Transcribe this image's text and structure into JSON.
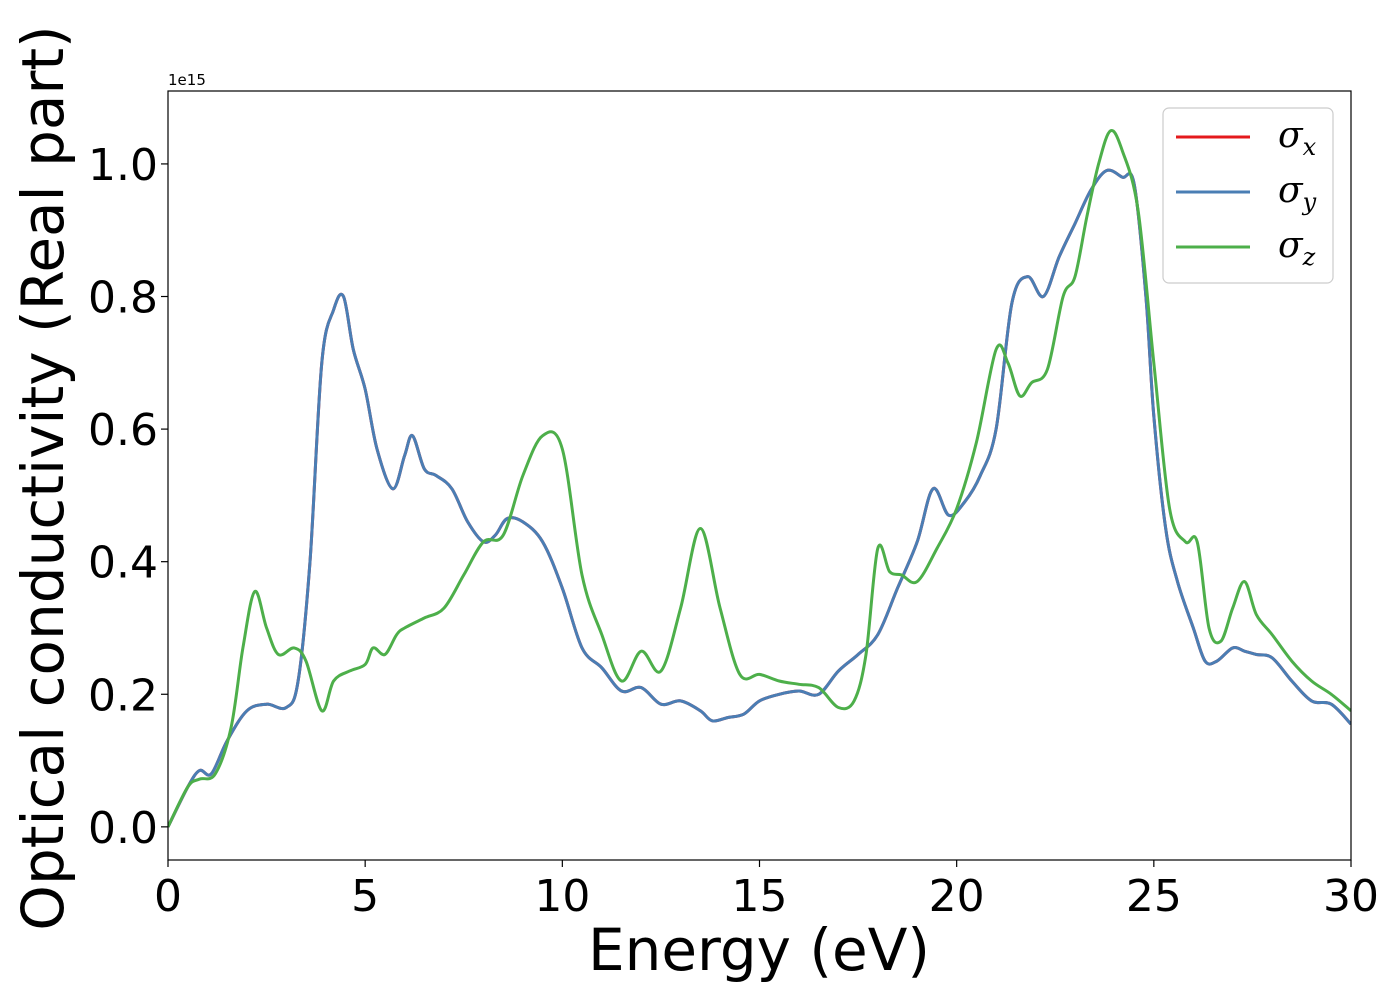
{
  "chart_data": {
    "type": "line",
    "title": "",
    "xlabel": "Energy (eV)",
    "ylabel": "Optical conductivity (Real part)",
    "y_offset_label": "1e15",
    "xlim": [
      0,
      30
    ],
    "ylim": [
      -0.05,
      1.11
    ],
    "x_ticks": [
      0,
      5,
      10,
      15,
      20,
      25,
      30
    ],
    "x_tick_labels": [
      "0",
      "5",
      "10",
      "15",
      "20",
      "25",
      "30"
    ],
    "y_ticks": [
      0.0,
      0.2,
      0.4,
      0.6,
      0.8,
      1.0
    ],
    "y_tick_labels": [
      "0.0",
      "0.2",
      "0.4",
      "0.6",
      "0.8",
      "1.0"
    ],
    "grid": false,
    "legend_position": "top-right",
    "series": [
      {
        "name": "σx",
        "symbol": "σ",
        "subscript": "x",
        "color": "#e41a1c",
        "x": [
          0,
          0.5,
          0.8,
          1.1,
          1.5,
          2.0,
          2.5,
          3.0,
          3.3,
          3.6,
          3.9,
          4.2,
          4.45,
          4.7,
          5.0,
          5.3,
          5.7,
          6.0,
          6.2,
          6.5,
          6.8,
          7.2,
          7.6,
          8.0,
          8.3,
          8.6,
          9.0,
          9.5,
          10.0,
          10.5,
          11.0,
          11.5,
          12.0,
          12.5,
          13.0,
          13.5,
          13.8,
          14.2,
          14.6,
          15.0,
          15.5,
          16.0,
          16.5,
          17.0,
          17.5,
          18.0,
          18.5,
          19.0,
          19.4,
          19.8,
          20.2,
          20.6,
          21.0,
          21.4,
          21.8,
          22.2,
          22.6,
          23.0,
          23.4,
          23.8,
          24.2,
          24.5,
          24.8,
          25.0,
          25.3,
          25.6,
          26.0,
          26.3,
          26.6,
          27.0,
          27.3,
          27.6,
          28.0,
          28.5,
          29.0,
          29.5,
          30.0
        ],
        "y": [
          0.0,
          0.06,
          0.085,
          0.08,
          0.13,
          0.175,
          0.185,
          0.18,
          0.22,
          0.4,
          0.7,
          0.78,
          0.8,
          0.72,
          0.66,
          0.57,
          0.51,
          0.56,
          0.59,
          0.54,
          0.53,
          0.51,
          0.46,
          0.43,
          0.44,
          0.465,
          0.46,
          0.43,
          0.36,
          0.27,
          0.24,
          0.205,
          0.21,
          0.185,
          0.19,
          0.175,
          0.16,
          0.165,
          0.17,
          0.19,
          0.2,
          0.205,
          0.2,
          0.235,
          0.26,
          0.29,
          0.36,
          0.43,
          0.51,
          0.47,
          0.49,
          0.53,
          0.6,
          0.79,
          0.83,
          0.8,
          0.86,
          0.91,
          0.96,
          0.99,
          0.98,
          0.97,
          0.8,
          0.62,
          0.45,
          0.37,
          0.3,
          0.25,
          0.25,
          0.27,
          0.265,
          0.26,
          0.255,
          0.22,
          0.19,
          0.185,
          0.155
        ]
      },
      {
        "name": "σy",
        "symbol": "σ",
        "subscript": "y",
        "color": "#4a7eb4",
        "x": [
          0,
          0.5,
          0.8,
          1.1,
          1.5,
          2.0,
          2.5,
          3.0,
          3.3,
          3.6,
          3.9,
          4.2,
          4.45,
          4.7,
          5.0,
          5.3,
          5.7,
          6.0,
          6.2,
          6.5,
          6.8,
          7.2,
          7.6,
          8.0,
          8.3,
          8.6,
          9.0,
          9.5,
          10.0,
          10.5,
          11.0,
          11.5,
          12.0,
          12.5,
          13.0,
          13.5,
          13.8,
          14.2,
          14.6,
          15.0,
          15.5,
          16.0,
          16.5,
          17.0,
          17.5,
          18.0,
          18.5,
          19.0,
          19.4,
          19.8,
          20.2,
          20.6,
          21.0,
          21.4,
          21.8,
          22.2,
          22.6,
          23.0,
          23.4,
          23.8,
          24.2,
          24.5,
          24.8,
          25.0,
          25.3,
          25.6,
          26.0,
          26.3,
          26.6,
          27.0,
          27.3,
          27.6,
          28.0,
          28.5,
          29.0,
          29.5,
          30.0
        ],
        "y": [
          0.0,
          0.06,
          0.085,
          0.08,
          0.13,
          0.175,
          0.185,
          0.18,
          0.22,
          0.4,
          0.7,
          0.78,
          0.8,
          0.72,
          0.66,
          0.57,
          0.51,
          0.56,
          0.59,
          0.54,
          0.53,
          0.51,
          0.46,
          0.43,
          0.44,
          0.465,
          0.46,
          0.43,
          0.36,
          0.27,
          0.24,
          0.205,
          0.21,
          0.185,
          0.19,
          0.175,
          0.16,
          0.165,
          0.17,
          0.19,
          0.2,
          0.205,
          0.2,
          0.235,
          0.26,
          0.29,
          0.36,
          0.43,
          0.51,
          0.47,
          0.49,
          0.53,
          0.6,
          0.79,
          0.83,
          0.8,
          0.86,
          0.91,
          0.96,
          0.99,
          0.98,
          0.97,
          0.8,
          0.62,
          0.45,
          0.37,
          0.3,
          0.25,
          0.25,
          0.27,
          0.265,
          0.26,
          0.255,
          0.22,
          0.19,
          0.185,
          0.155
        ]
      },
      {
        "name": "σz",
        "symbol": "σ",
        "subscript": "z",
        "color": "#4daf4a",
        "x": [
          0,
          0.5,
          0.8,
          1.2,
          1.6,
          1.9,
          2.2,
          2.5,
          2.8,
          3.2,
          3.5,
          3.9,
          4.2,
          4.6,
          5.0,
          5.2,
          5.5,
          5.8,
          6.0,
          6.5,
          7.0,
          7.5,
          8.0,
          8.5,
          9.0,
          9.5,
          10.0,
          10.5,
          11.0,
          11.5,
          12.0,
          12.5,
          13.0,
          13.5,
          14.0,
          14.5,
          15.0,
          15.5,
          16.0,
          16.5,
          17.0,
          17.4,
          17.7,
          18.0,
          18.3,
          18.6,
          19.0,
          19.5,
          20.0,
          20.5,
          21.0,
          21.3,
          21.6,
          21.9,
          22.3,
          22.7,
          23.0,
          23.3,
          23.6,
          23.9,
          24.2,
          24.6,
          25.0,
          25.4,
          25.8,
          26.1,
          26.4,
          26.7,
          27.0,
          27.3,
          27.6,
          28.0,
          28.5,
          29.0,
          29.5,
          30.0
        ],
        "y": [
          0.0,
          0.06,
          0.072,
          0.08,
          0.15,
          0.27,
          0.355,
          0.3,
          0.26,
          0.27,
          0.25,
          0.175,
          0.22,
          0.235,
          0.245,
          0.27,
          0.26,
          0.29,
          0.3,
          0.315,
          0.33,
          0.38,
          0.43,
          0.44,
          0.53,
          0.59,
          0.57,
          0.38,
          0.29,
          0.22,
          0.265,
          0.235,
          0.33,
          0.45,
          0.33,
          0.23,
          0.23,
          0.22,
          0.215,
          0.21,
          0.18,
          0.19,
          0.26,
          0.42,
          0.385,
          0.38,
          0.37,
          0.42,
          0.48,
          0.58,
          0.72,
          0.7,
          0.65,
          0.67,
          0.69,
          0.8,
          0.83,
          0.92,
          1.0,
          1.05,
          1.02,
          0.93,
          0.7,
          0.48,
          0.43,
          0.43,
          0.3,
          0.28,
          0.33,
          0.37,
          0.32,
          0.29,
          0.25,
          0.22,
          0.2,
          0.175
        ]
      }
    ]
  }
}
